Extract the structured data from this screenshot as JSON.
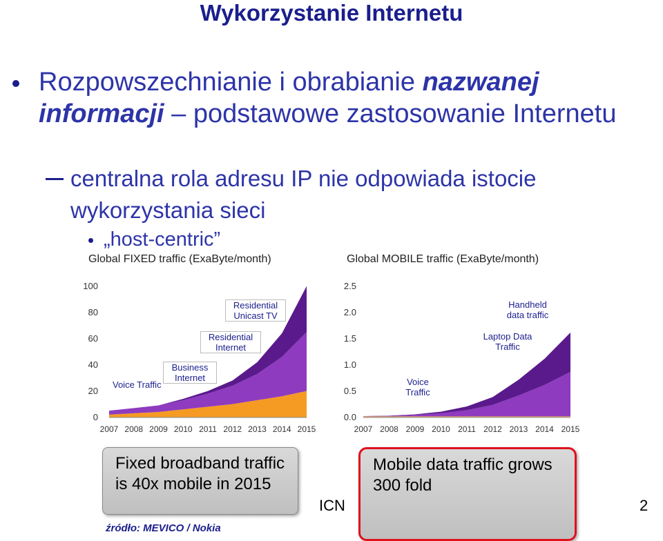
{
  "slide": {
    "title": "Wykorzystanie Internetu",
    "bullet1_pre": "Rozpowszechnianie i obrabianie ",
    "bullet1_em": "nazwanej informacji",
    "bullet1_post": " – podstawowe zastosowanie Internetu",
    "bullet2": "centralna rola adresu IP nie odpowiada istocie wykorzystania sieci",
    "bullet3": "„host-centric”",
    "box_fixed": "Fixed broadband traffic is 40x mobile in 2015",
    "box_mobile": "Mobile data traffic grows 300 fold",
    "footer_icn": "ICN",
    "page_number": "2",
    "source": "źródło:  MEVICO / Nokia"
  },
  "chart_data": [
    {
      "type": "area",
      "title": "Global FIXED traffic (ExaByte/month)",
      "x": [
        "2007",
        "2008",
        "2009",
        "2010",
        "2011",
        "2012",
        "2013",
        "2014",
        "2015"
      ],
      "ylim": [
        0,
        100
      ],
      "yticks": [
        "0",
        "20",
        "40",
        "60",
        "80",
        "100"
      ],
      "series": [
        {
          "name": "Voice Traffic",
          "values": [
            0.2,
            0.2,
            0.2,
            0.2,
            0.2,
            0.2,
            0.2,
            0.2,
            0.2
          ]
        },
        {
          "name": "Business Internet",
          "values": [
            2,
            3,
            4,
            6,
            8,
            10,
            13,
            16,
            20
          ]
        },
        {
          "name": "Residential Internet",
          "values": [
            3,
            4,
            5,
            7,
            10,
            14,
            20,
            30,
            45
          ]
        },
        {
          "name": "Residential Unicast TV",
          "values": [
            0,
            0,
            0,
            1,
            2,
            4,
            9,
            18,
            35
          ]
        }
      ]
    },
    {
      "type": "area",
      "title": "Global MOBILE traffic (ExaByte/month)",
      "x": [
        "2007",
        "2008",
        "2009",
        "2010",
        "2011",
        "2012",
        "2013",
        "2014",
        "2015"
      ],
      "ylim": [
        0,
        2.5
      ],
      "yticks": [
        "0.0",
        "0.5",
        "1.0",
        "1.5",
        "2.0",
        "2.5"
      ],
      "series": [
        {
          "name": "Voice Traffic",
          "values": [
            0.02,
            0.02,
            0.02,
            0.02,
            0.02,
            0.02,
            0.02,
            0.02,
            0.02
          ]
        },
        {
          "name": "Laptop Data Traffic",
          "values": [
            0.005,
            0.01,
            0.03,
            0.06,
            0.12,
            0.22,
            0.4,
            0.6,
            0.85
          ]
        },
        {
          "name": "Handheld data traffic",
          "values": [
            0.002,
            0.005,
            0.01,
            0.03,
            0.07,
            0.15,
            0.3,
            0.5,
            0.75
          ]
        }
      ]
    }
  ],
  "colors": {
    "title": "#1a1e8c",
    "text": "#2d34a8",
    "voice": "#f7c25a",
    "business": "#f59a23",
    "res_internet": "#8e3bbf",
    "res_tv": "#5a1a8c",
    "laptop": "#8e3bbf",
    "handheld": "#5a1a8c",
    "highlight": "#e0101c"
  }
}
